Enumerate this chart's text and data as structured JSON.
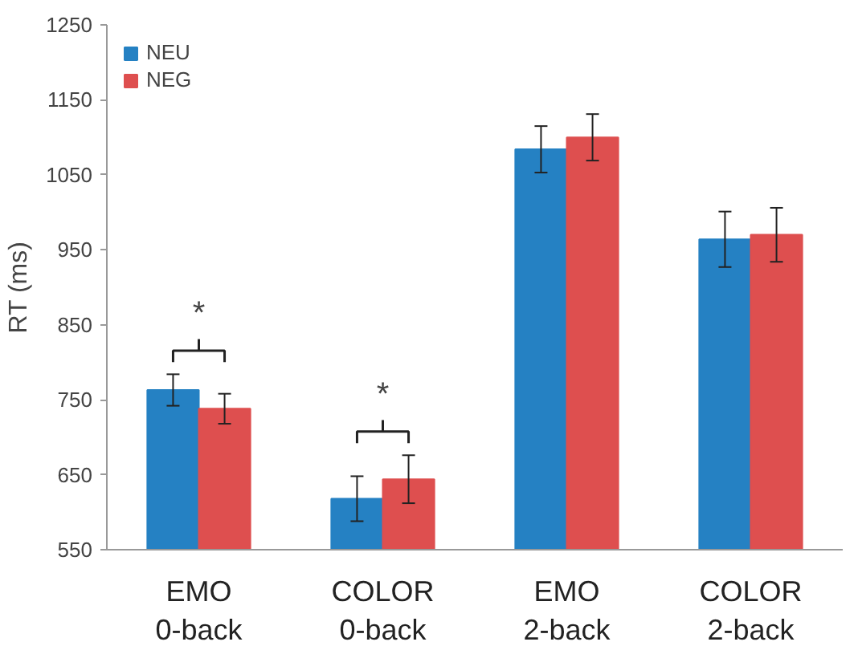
{
  "chart_data": {
    "type": "bar",
    "ylabel": "RT (ms)",
    "categories": [
      "EMO\n0-back",
      "COLOR\n0-back",
      "EMO\n2-back",
      "COLOR\n2-back"
    ],
    "series": [
      {
        "name": "NEU",
        "color": "#2581c3",
        "values": [
          763,
          618,
          1084,
          964
        ],
        "errors": [
          21,
          30,
          31,
          37
        ]
      },
      {
        "name": "NEG",
        "color": "#de4f4f",
        "values": [
          738,
          644,
          1100,
          970
        ],
        "errors": [
          20,
          32,
          31,
          36
        ]
      }
    ],
    "ylim": [
      550,
      1250
    ],
    "yticks": [
      550,
      650,
      750,
      850,
      950,
      1050,
      1150,
      1250
    ],
    "annotations": [
      "*",
      "*"
    ],
    "grid": false,
    "legend": "top left"
  }
}
